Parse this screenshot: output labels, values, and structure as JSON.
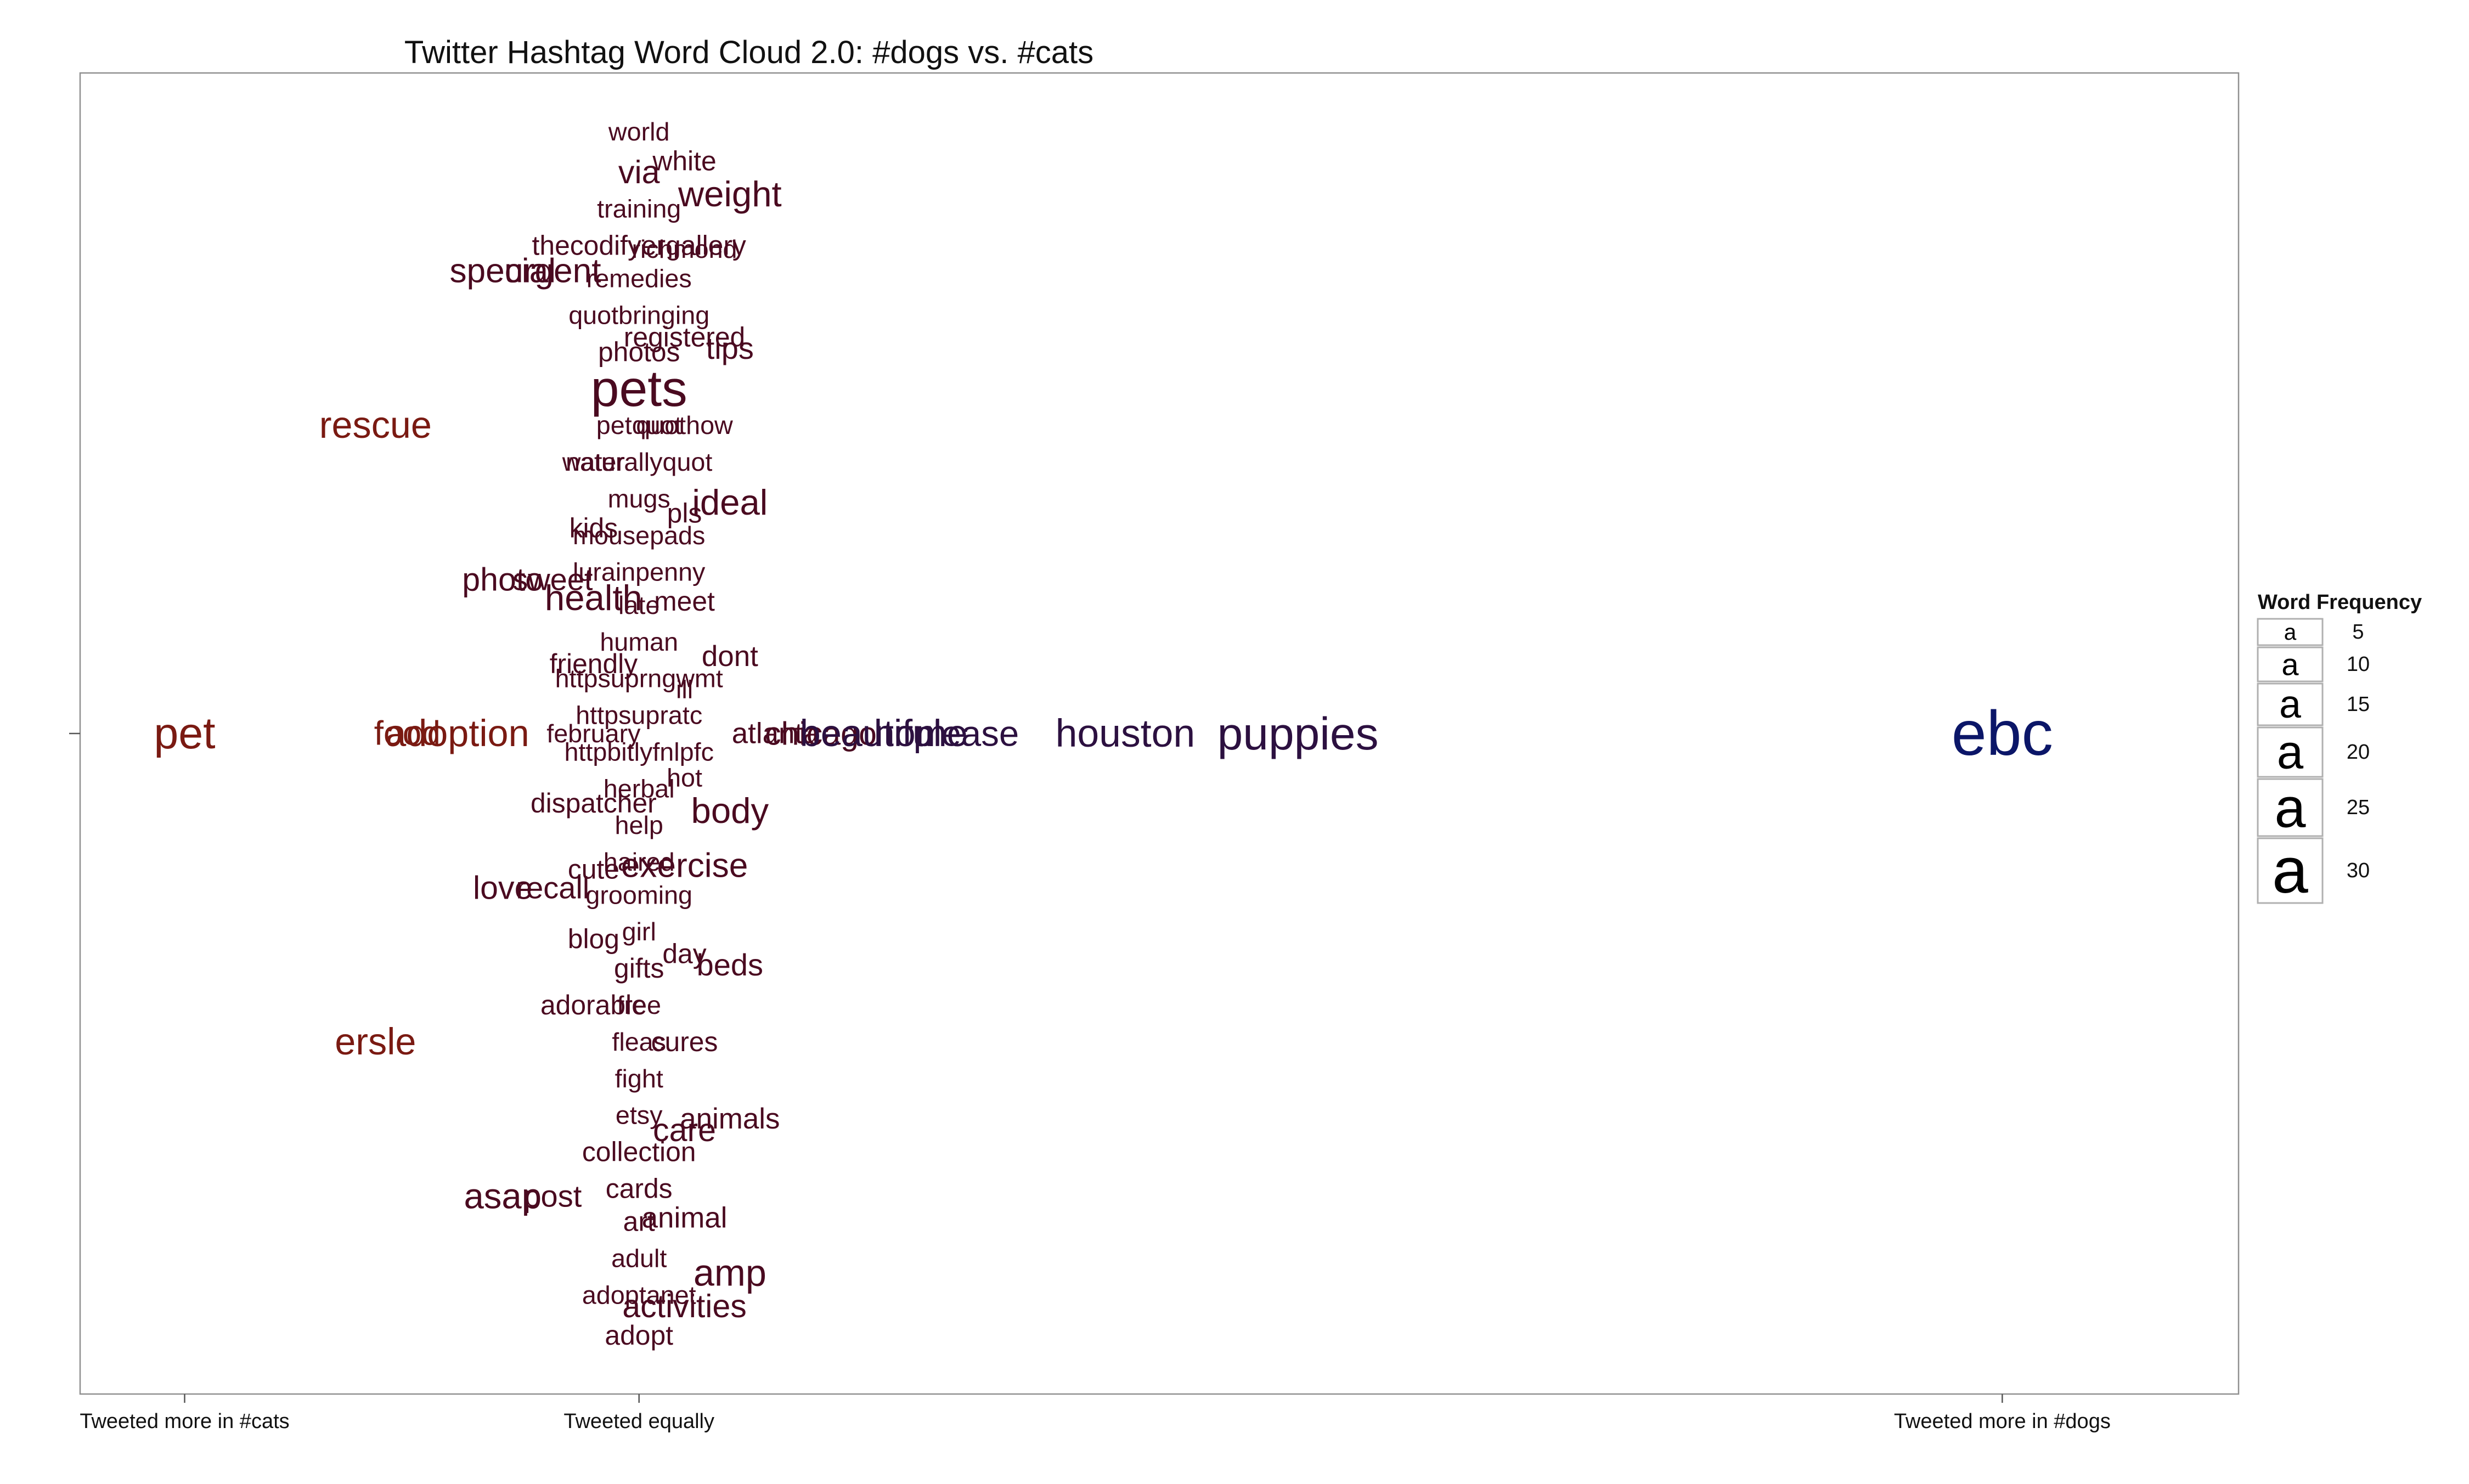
{
  "chart_data": {
    "type": "scatter",
    "title": "Twitter Hashtag Word Cloud 2.0: #dogs vs. #cats",
    "x_axis": {
      "ticks": [
        {
          "value": -1,
          "label": "Tweeted more in #cats"
        },
        {
          "value": 0,
          "label": "Tweeted equally"
        },
        {
          "value": 3,
          "label": "Tweeted more in #dogs"
        }
      ],
      "range": [
        -1.23,
        3.52
      ]
    },
    "y_axis": {
      "range": [
        -1.8,
        1.8
      ],
      "ticks": [
        0
      ]
    },
    "colors": {
      "cats": "#7a1a12",
      "neutral": "#4a0a20",
      "mixed": "#2c1040",
      "dogs": "#0b1668"
    },
    "legend": {
      "title": "Word Frequency",
      "entries": [
        {
          "glyph": "a",
          "value": "5"
        },
        {
          "glyph": "a",
          "value": "10"
        },
        {
          "glyph": "a",
          "value": "15"
        },
        {
          "glyph": "a",
          "value": "20"
        },
        {
          "glyph": "a",
          "value": "25"
        },
        {
          "glyph": "a",
          "value": "30"
        }
      ]
    },
    "words": [
      {
        "text": "pet",
        "x": -1.0,
        "y": 0.0,
        "freq": 18,
        "color": "cats"
      },
      {
        "text": "rescue",
        "x": -0.58,
        "y": 0.84,
        "freq": 14,
        "color": "cats"
      },
      {
        "text": "ersle",
        "x": -0.58,
        "y": -0.84,
        "freq": 14,
        "color": "cats"
      },
      {
        "text": "food",
        "x": -0.51,
        "y": 0.0,
        "freq": 12,
        "color": "cats"
      },
      {
        "text": "adoption",
        "x": -0.4,
        "y": 0.0,
        "freq": 14,
        "color": "cats"
      },
      {
        "text": "special",
        "x": -0.3,
        "y": 1.26,
        "freq": 12,
        "color": "neutral"
      },
      {
        "text": "urgent",
        "x": -0.19,
        "y": 1.26,
        "freq": 12,
        "color": "neutral"
      },
      {
        "text": "photo",
        "x": -0.3,
        "y": 0.42,
        "freq": 11,
        "color": "neutral"
      },
      {
        "text": "sweet",
        "x": -0.19,
        "y": 0.42,
        "freq": 10,
        "color": "neutral"
      },
      {
        "text": "love",
        "x": -0.3,
        "y": -0.42,
        "freq": 11,
        "color": "neutral"
      },
      {
        "text": "recall",
        "x": -0.19,
        "y": -0.42,
        "freq": 10,
        "color": "neutral"
      },
      {
        "text": "asap",
        "x": -0.3,
        "y": -1.26,
        "freq": 13,
        "color": "neutral"
      },
      {
        "text": "post",
        "x": -0.19,
        "y": -1.26,
        "freq": 10,
        "color": "neutral"
      },
      {
        "text": "world",
        "x": 0.0,
        "y": 1.64,
        "freq": 7,
        "color": "neutral"
      },
      {
        "text": "white",
        "x": 0.1,
        "y": 1.56,
        "freq": 8,
        "color": "neutral"
      },
      {
        "text": "via",
        "x": 0.0,
        "y": 1.53,
        "freq": 11,
        "color": "neutral"
      },
      {
        "text": "weight",
        "x": 0.2,
        "y": 1.47,
        "freq": 13,
        "color": "neutral"
      },
      {
        "text": "training",
        "x": 0.0,
        "y": 1.43,
        "freq": 7,
        "color": "neutral"
      },
      {
        "text": "thecodifyergallery",
        "x": 0.0,
        "y": 1.33,
        "freq": 8,
        "color": "neutral"
      },
      {
        "text": "richmond",
        "x": 0.1,
        "y": 1.32,
        "freq": 7,
        "color": "neutral"
      },
      {
        "text": "remedies",
        "x": 0.0,
        "y": 1.24,
        "freq": 7,
        "color": "neutral"
      },
      {
        "text": "quotbringing",
        "x": 0.0,
        "y": 1.14,
        "freq": 7,
        "color": "neutral"
      },
      {
        "text": "registered",
        "x": 0.1,
        "y": 1.08,
        "freq": 8,
        "color": "neutral"
      },
      {
        "text": "photos",
        "x": 0.0,
        "y": 1.04,
        "freq": 8,
        "color": "neutral"
      },
      {
        "text": "tips",
        "x": 0.2,
        "y": 1.05,
        "freq": 10,
        "color": "neutral"
      },
      {
        "text": "pets",
        "x": 0.0,
        "y": 0.94,
        "freq": 22,
        "color": "neutral"
      },
      {
        "text": "petquot",
        "x": 0.0,
        "y": 0.84,
        "freq": 7,
        "color": "neutral"
      },
      {
        "text": "quothow",
        "x": 0.1,
        "y": 0.84,
        "freq": 7,
        "color": "neutral"
      },
      {
        "text": "water",
        "x": -0.1,
        "y": 0.74,
        "freq": 7,
        "color": "neutral"
      },
      {
        "text": "naturallyquot",
        "x": 0.0,
        "y": 0.74,
        "freq": 7,
        "color": "neutral"
      },
      {
        "text": "mugs",
        "x": 0.0,
        "y": 0.64,
        "freq": 7,
        "color": "neutral"
      },
      {
        "text": "pls",
        "x": 0.1,
        "y": 0.6,
        "freq": 8,
        "color": "neutral"
      },
      {
        "text": "ideal",
        "x": 0.2,
        "y": 0.63,
        "freq": 13,
        "color": "neutral"
      },
      {
        "text": "kids",
        "x": -0.1,
        "y": 0.56,
        "freq": 8,
        "color": "neutral"
      },
      {
        "text": "mousepads",
        "x": 0.0,
        "y": 0.54,
        "freq": 7,
        "color": "neutral"
      },
      {
        "text": "lurainpenny",
        "x": 0.0,
        "y": 0.44,
        "freq": 7,
        "color": "neutral"
      },
      {
        "text": "health",
        "x": -0.1,
        "y": 0.37,
        "freq": 13,
        "color": "neutral"
      },
      {
        "text": "late",
        "x": 0.0,
        "y": 0.35,
        "freq": 7,
        "color": "neutral"
      },
      {
        "text": "meet",
        "x": 0.1,
        "y": 0.36,
        "freq": 8,
        "color": "neutral"
      },
      {
        "text": "human",
        "x": 0.0,
        "y": 0.25,
        "freq": 7,
        "color": "neutral"
      },
      {
        "text": "dont",
        "x": 0.2,
        "y": 0.21,
        "freq": 9,
        "color": "neutral"
      },
      {
        "text": "friendly",
        "x": -0.1,
        "y": 0.19,
        "freq": 8,
        "color": "neutral"
      },
      {
        "text": "httpsuprngwmt",
        "x": 0.0,
        "y": 0.15,
        "freq": 7,
        "color": "neutral"
      },
      {
        "text": "ill",
        "x": 0.1,
        "y": 0.12,
        "freq": 7,
        "color": "neutral"
      },
      {
        "text": "httpsupratc",
        "x": 0.0,
        "y": 0.05,
        "freq": 7,
        "color": "neutral"
      },
      {
        "text": "february",
        "x": -0.1,
        "y": 0.0,
        "freq": 7,
        "color": "neutral"
      },
      {
        "text": "httpbitlyfnlpfc",
        "x": 0.0,
        "y": -0.05,
        "freq": 7,
        "color": "neutral"
      },
      {
        "text": "hot",
        "x": 0.1,
        "y": -0.12,
        "freq": 7,
        "color": "neutral"
      },
      {
        "text": "herbal",
        "x": 0.0,
        "y": -0.15,
        "freq": 7,
        "color": "neutral"
      },
      {
        "text": "dispatcher",
        "x": -0.1,
        "y": -0.19,
        "freq": 8,
        "color": "neutral"
      },
      {
        "text": "body",
        "x": 0.2,
        "y": -0.21,
        "freq": 13,
        "color": "neutral"
      },
      {
        "text": "help",
        "x": 0.0,
        "y": -0.25,
        "freq": 7,
        "color": "neutral"
      },
      {
        "text": "haired",
        "x": 0.0,
        "y": -0.35,
        "freq": 7,
        "color": "neutral"
      },
      {
        "text": "cute",
        "x": -0.1,
        "y": -0.37,
        "freq": 8,
        "color": "neutral"
      },
      {
        "text": "exercise",
        "x": 0.1,
        "y": -0.36,
        "freq": 12,
        "color": "neutral"
      },
      {
        "text": "grooming",
        "x": 0.0,
        "y": -0.44,
        "freq": 7,
        "color": "neutral"
      },
      {
        "text": "girl",
        "x": 0.0,
        "y": -0.54,
        "freq": 7,
        "color": "neutral"
      },
      {
        "text": "blog",
        "x": -0.1,
        "y": -0.56,
        "freq": 8,
        "color": "neutral"
      },
      {
        "text": "day",
        "x": 0.1,
        "y": -0.6,
        "freq": 8,
        "color": "neutral"
      },
      {
        "text": "beds",
        "x": 0.2,
        "y": -0.63,
        "freq": 10,
        "color": "neutral"
      },
      {
        "text": "gifts",
        "x": 0.0,
        "y": -0.64,
        "freq": 8,
        "color": "neutral"
      },
      {
        "text": "adorable",
        "x": -0.1,
        "y": -0.74,
        "freq": 8,
        "color": "neutral"
      },
      {
        "text": "free",
        "x": 0.0,
        "y": -0.74,
        "freq": 7,
        "color": "neutral"
      },
      {
        "text": "fleas",
        "x": 0.0,
        "y": -0.84,
        "freq": 7,
        "color": "neutral"
      },
      {
        "text": "cures",
        "x": 0.1,
        "y": -0.84,
        "freq": 8,
        "color": "neutral"
      },
      {
        "text": "fight",
        "x": 0.0,
        "y": -0.94,
        "freq": 7,
        "color": "neutral"
      },
      {
        "text": "etsy",
        "x": 0.0,
        "y": -1.04,
        "freq": 7,
        "color": "neutral"
      },
      {
        "text": "animals",
        "x": 0.2,
        "y": -1.05,
        "freq": 9,
        "color": "neutral"
      },
      {
        "text": "care",
        "x": 0.1,
        "y": -1.08,
        "freq": 11,
        "color": "neutral"
      },
      {
        "text": "collection",
        "x": 0.0,
        "y": -1.14,
        "freq": 8,
        "color": "neutral"
      },
      {
        "text": "cards",
        "x": 0.0,
        "y": -1.24,
        "freq": 8,
        "color": "neutral"
      },
      {
        "text": "art",
        "x": 0.0,
        "y": -1.33,
        "freq": 8,
        "color": "neutral"
      },
      {
        "text": "animal",
        "x": 0.1,
        "y": -1.32,
        "freq": 9,
        "color": "neutral"
      },
      {
        "text": "adult",
        "x": 0.0,
        "y": -1.43,
        "freq": 7,
        "color": "neutral"
      },
      {
        "text": "amp",
        "x": 0.2,
        "y": -1.47,
        "freq": 14,
        "color": "neutral"
      },
      {
        "text": "adoptanet",
        "x": 0.0,
        "y": -1.53,
        "freq": 7,
        "color": "neutral"
      },
      {
        "text": "activities",
        "x": 0.1,
        "y": -1.56,
        "freq": 11,
        "color": "neutral"
      },
      {
        "text": "adopt",
        "x": 0.0,
        "y": -1.64,
        "freq": 8,
        "color": "neutral"
      },
      {
        "text": "atlanta",
        "x": 0.3,
        "y": 0.0,
        "freq": 9,
        "color": "neutral"
      },
      {
        "text": "chicago",
        "x": 0.4,
        "y": 0.0,
        "freq": 11,
        "color": "neutral"
      },
      {
        "text": "beautiful",
        "x": 0.51,
        "y": 0.0,
        "freq": 14,
        "color": "mixed"
      },
      {
        "text": "home",
        "x": 0.62,
        "y": 0.0,
        "freq": 14,
        "color": "mixed"
      },
      {
        "text": "please",
        "x": 0.72,
        "y": 0.0,
        "freq": 13,
        "color": "mixed"
      },
      {
        "text": "houston",
        "x": 1.07,
        "y": 0.0,
        "freq": 15,
        "color": "mixed"
      },
      {
        "text": "puppies",
        "x": 1.45,
        "y": 0.0,
        "freq": 19,
        "color": "mixed"
      },
      {
        "text": "ebc",
        "x": 3.0,
        "y": 0.0,
        "freq": 29,
        "color": "dogs"
      }
    ]
  }
}
